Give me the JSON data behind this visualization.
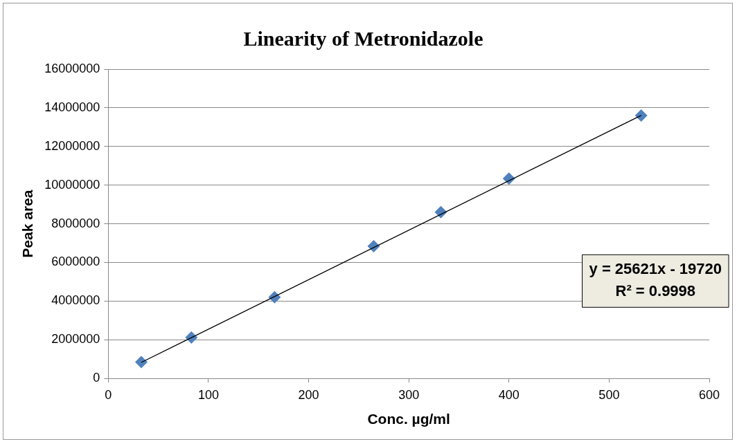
{
  "chart_data": {
    "type": "scatter",
    "title": "Linearity of Metronidazole",
    "xlabel": "Conc. µg/ml",
    "ylabel": "Peak area",
    "series": [
      {
        "color": "#4f81bd",
        "x": [
          33,
          83,
          166,
          265,
          332,
          400,
          532
        ],
        "values": [
          850000,
          2120000,
          4200000,
          6840000,
          8600000,
          10340000,
          13600000
        ]
      },
      {
        "type": "line",
        "marker": "none",
        "color": "#000000",
        "x": [
          33,
          532
        ],
        "values": [
          830000,
          13610000
        ]
      }
    ],
    "xlim": [
      0,
      600
    ],
    "xticks": [
      0,
      100,
      200,
      300,
      400,
      500,
      600
    ],
    "ylim": [
      0,
      16000000
    ],
    "yticks": [
      0,
      2000000,
      4000000,
      6000000,
      8000000,
      10000000,
      12000000,
      14000000,
      16000000
    ],
    "grid": "y",
    "marker": "diamond",
    "line_style": "solid",
    "annotations": [
      "y = 25621x - 19720",
      "R² = 0.9998"
    ]
  }
}
